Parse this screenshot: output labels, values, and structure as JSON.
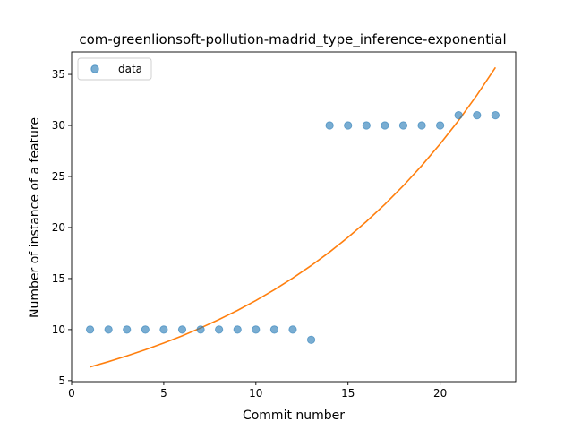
{
  "chart_data": {
    "type": "scatter",
    "title": "com-greenlionsoft-pollution-madrid_type_inference-exponential",
    "xlabel": "Commit number",
    "ylabel": "Number of instance of a feature",
    "xlim": [
      0,
      24.1
    ],
    "ylim": [
      4.9,
      37.2
    ],
    "xticks": [
      0,
      5,
      10,
      15,
      20
    ],
    "yticks": [
      5,
      10,
      15,
      20,
      25,
      30,
      35
    ],
    "grid": false,
    "legend": {
      "position": "top-left",
      "entries": [
        "data"
      ]
    },
    "colors": {
      "data": "#1f77b4",
      "fit": "#ff7f0e"
    },
    "series": [
      {
        "name": "data",
        "kind": "scatter",
        "x": [
          1,
          2,
          3,
          4,
          5,
          6,
          7,
          8,
          9,
          10,
          11,
          12,
          13,
          14,
          15,
          16,
          17,
          18,
          19,
          20,
          21,
          22,
          23
        ],
        "y": [
          10,
          10,
          10,
          10,
          10,
          10,
          10,
          10,
          10,
          10,
          10,
          10,
          9,
          30,
          30,
          30,
          30,
          30,
          30,
          30,
          31,
          31,
          31
        ]
      },
      {
        "kind": "line",
        "x": [
          1,
          2,
          3,
          4,
          5,
          6,
          7,
          8,
          9,
          10,
          11,
          12,
          13,
          14,
          15,
          16,
          17,
          18,
          19,
          20,
          21,
          22,
          23
        ],
        "y": [
          6.34,
          6.86,
          7.42,
          8.03,
          8.68,
          9.39,
          10.16,
          10.99,
          11.88,
          12.85,
          13.9,
          15.04,
          16.27,
          17.6,
          19.04,
          20.59,
          22.27,
          24.09,
          26.06,
          28.19,
          30.49,
          32.98,
          35.68
        ]
      }
    ]
  }
}
